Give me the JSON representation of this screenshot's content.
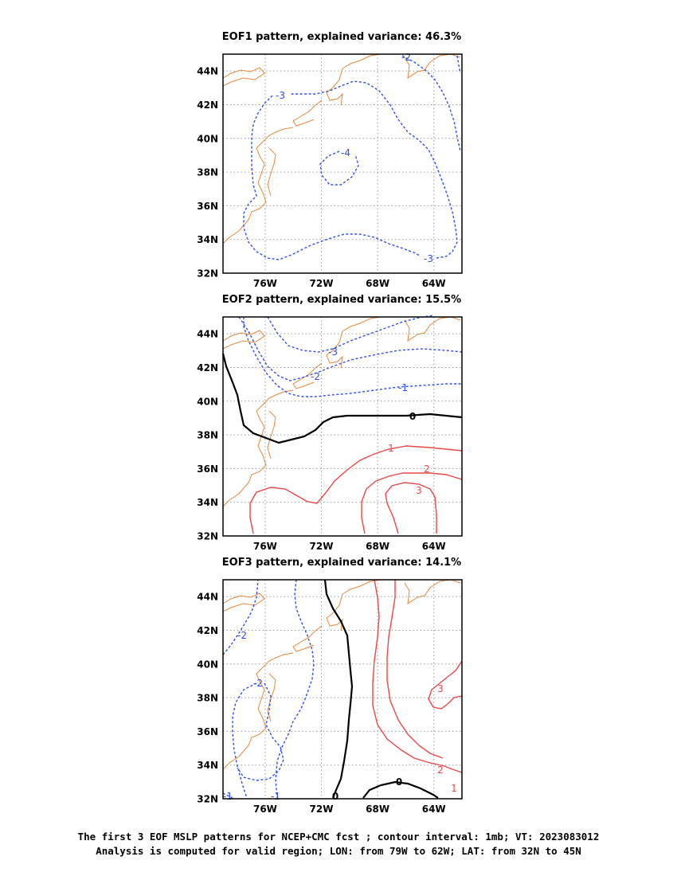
{
  "chart_data": [
    {
      "type": "contour",
      "title": "EOF1 pattern, explained variance: 46.3%",
      "x_ticks": [
        "76W",
        "72W",
        "68W",
        "64W"
      ],
      "y_ticks": [
        "44N",
        "42N",
        "40N",
        "38N",
        "36N",
        "34N",
        "32N"
      ],
      "xlim": [
        "79W",
        "62W"
      ],
      "ylim": [
        "32N",
        "45N"
      ],
      "grid": true,
      "contour_labels": [
        "-2",
        "-3",
        "-4",
        "-3"
      ]
    },
    {
      "type": "contour",
      "title": "EOF2 pattern, explained variance: 15.5%",
      "x_ticks": [
        "76W",
        "72W",
        "68W",
        "64W"
      ],
      "y_ticks": [
        "44N",
        "42N",
        "40N",
        "38N",
        "36N",
        "34N",
        "32N"
      ],
      "xlim": [
        "79W",
        "62W"
      ],
      "ylim": [
        "32N",
        "45N"
      ],
      "grid": true,
      "contour_labels": [
        "-3",
        "-2",
        "-1",
        "0",
        "1",
        "2",
        "3"
      ]
    },
    {
      "type": "contour",
      "title": "EOF3 pattern, explained variance: 14.1%",
      "x_ticks": [
        "76W",
        "72W",
        "68W",
        "64W"
      ],
      "y_ticks": [
        "44N",
        "42N",
        "40N",
        "38N",
        "36N",
        "34N",
        "32N"
      ],
      "xlim": [
        "79W",
        "62W"
      ],
      "ylim": [
        "32N",
        "45N"
      ],
      "grid": true,
      "contour_labels": [
        "-2",
        "-2",
        "-1",
        "-1",
        "0",
        "0",
        "3",
        "2",
        "1"
      ]
    }
  ],
  "caption": {
    "line1": "The first 3 EOF MSLP patterns for NCEP+CMC fcst ; contour interval: 1mb; VT: 2023083012",
    "line2": "Analysis is computed for valid region; LON: from 79W to 62W; LAT: from 32N to 45N"
  },
  "colors": {
    "negative": "#2e4fe8",
    "positive": "#e84848",
    "zero": "#000000",
    "coast": "#e6883a",
    "grid": "#9a9a9a"
  }
}
